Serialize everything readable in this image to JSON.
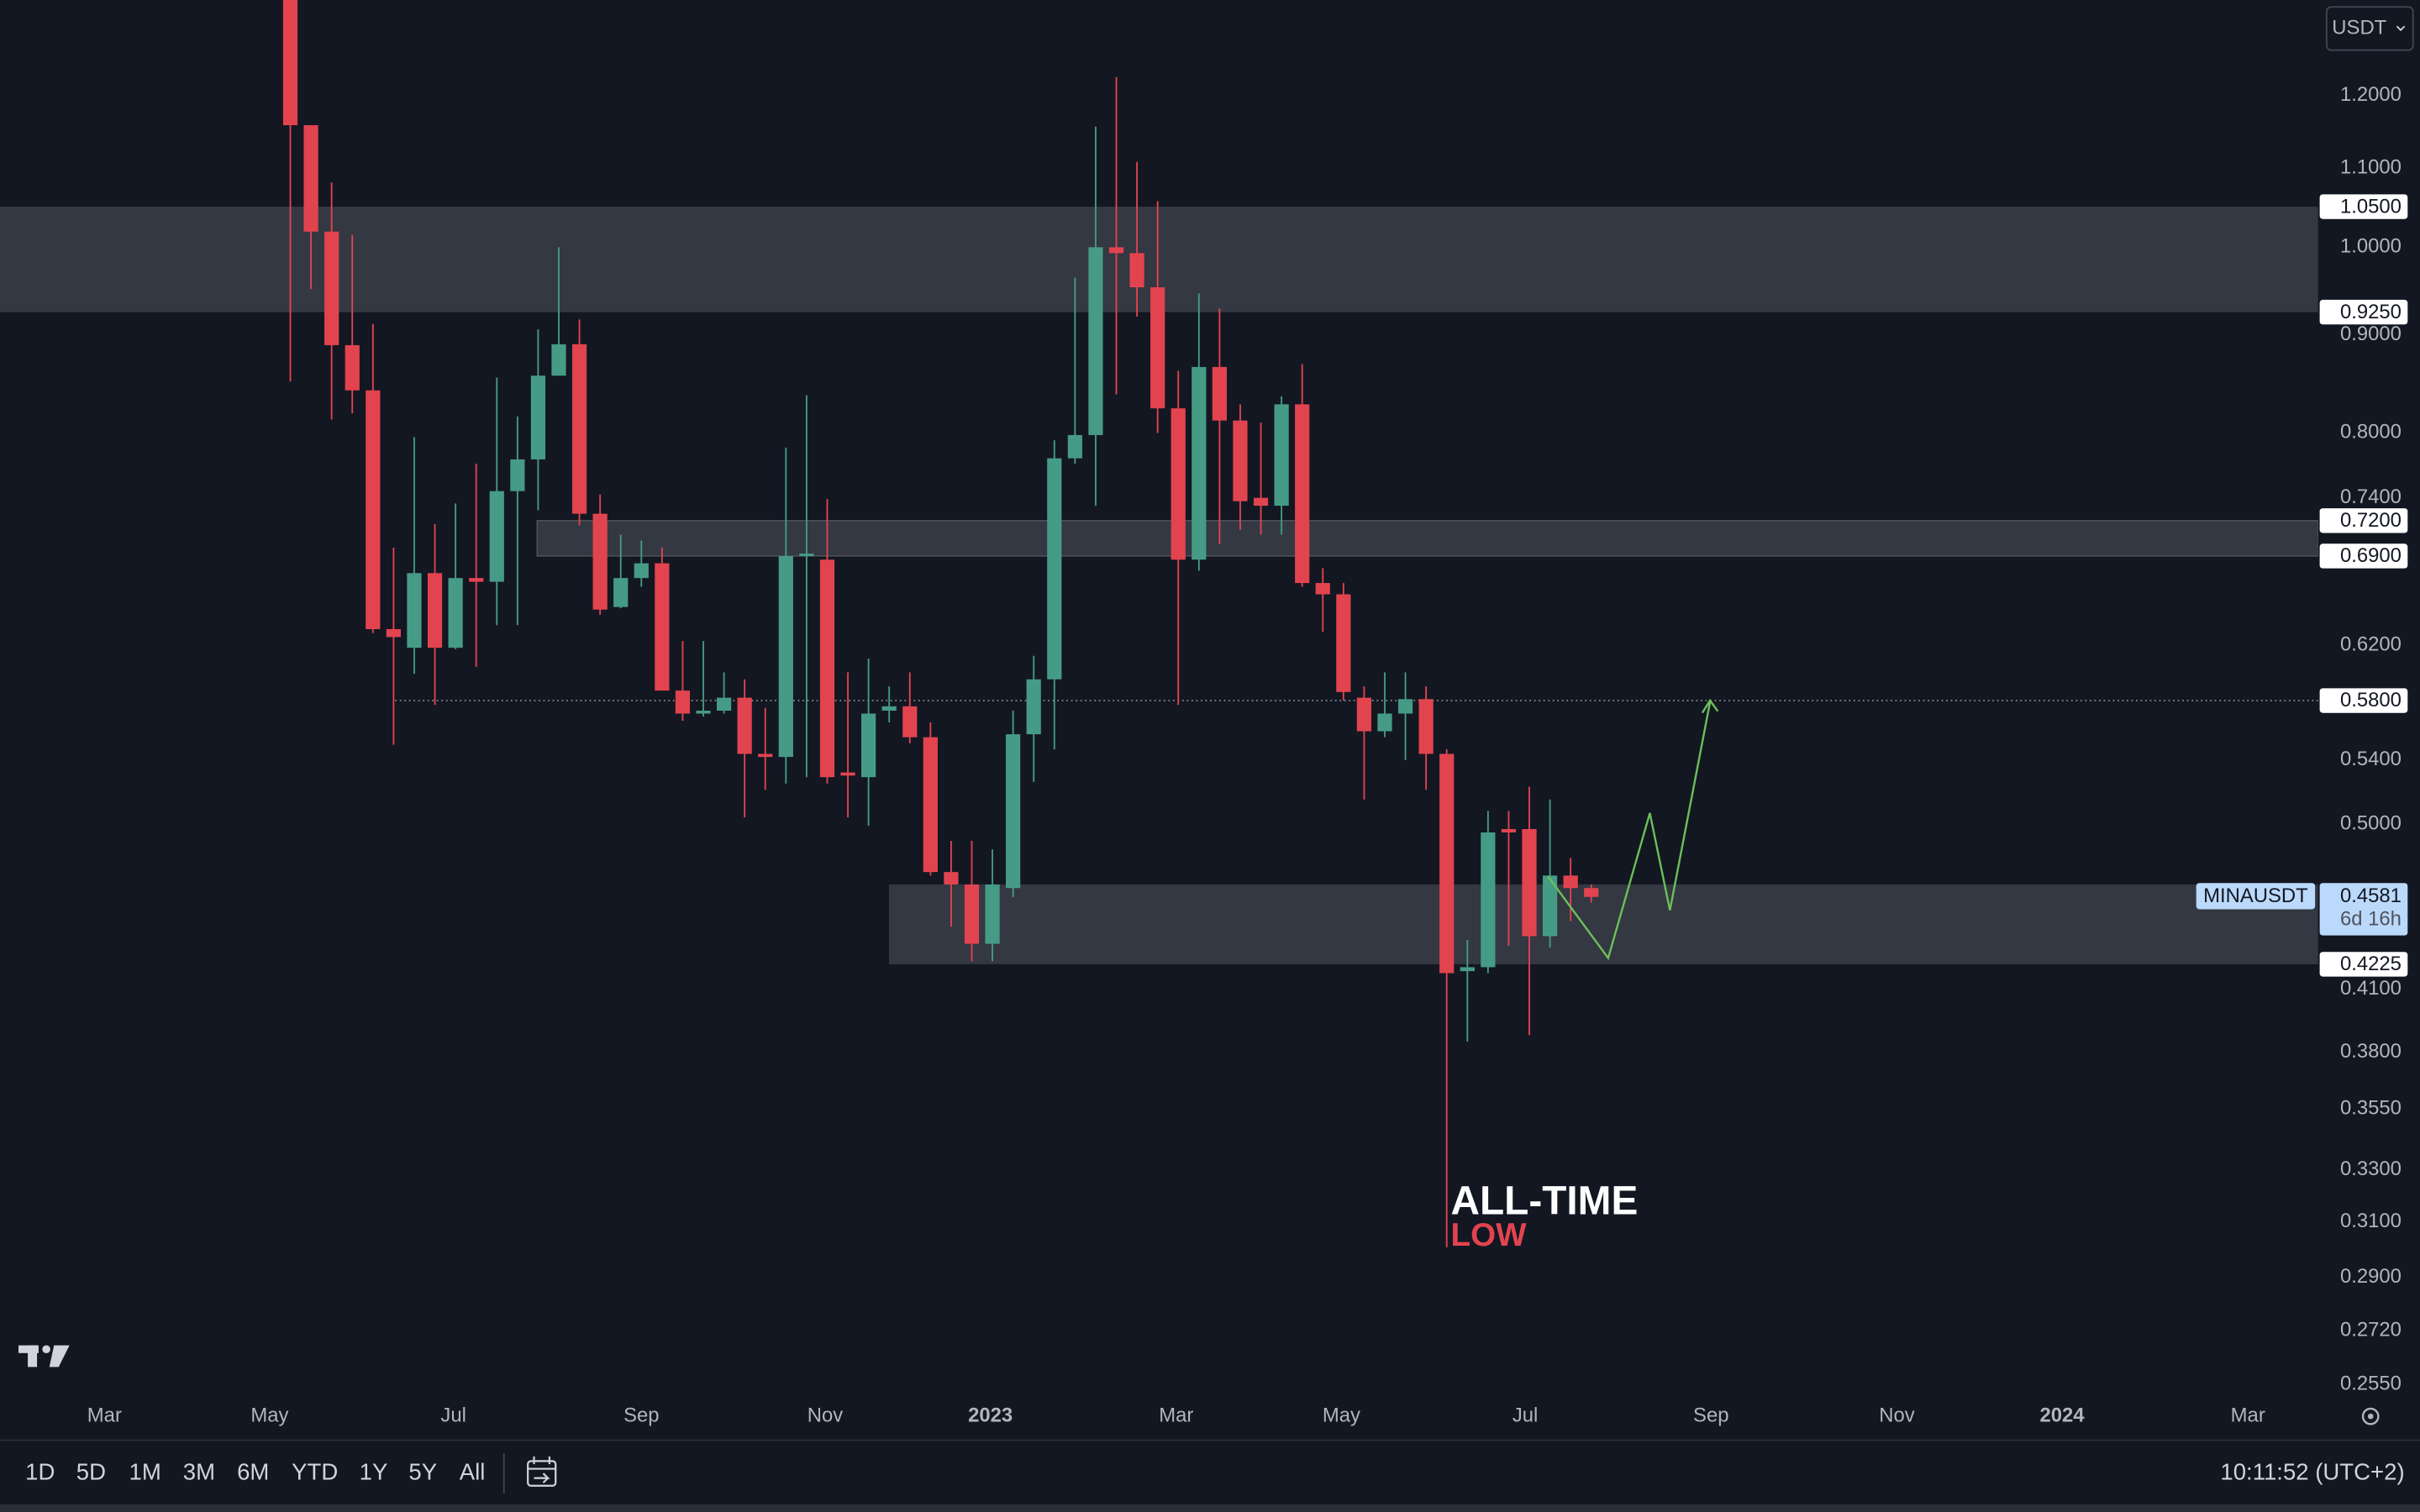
{
  "chart_data": {
    "type": "candlestick",
    "open": [
      1.4,
      1.158,
      1.019,
      0.889,
      0.842,
      0.632,
      0.618,
      0.676,
      0.618,
      0.672,
      0.669,
      0.746,
      0.775,
      0.857,
      0.89,
      0.726,
      0.649,
      0.672,
      0.684,
      0.587,
      0.571,
      0.573,
      0.582,
      0.544,
      0.542,
      0.69,
      0.687,
      0.532,
      0.529,
      0.573,
      0.576,
      0.555,
      0.472,
      0.465,
      0.433,
      0.463,
      0.557,
      0.595,
      0.776,
      0.798,
      1.0,
      0.993,
      0.953,
      0.824,
      0.687,
      0.866,
      0.812,
      0.74,
      0.733,
      0.828,
      0.668,
      0.659,
      0.582,
      0.559,
      0.571,
      0.581,
      0.544,
      0.419,
      0.421,
      0.497,
      0.497,
      0.437,
      0.47,
      0.463
    ],
    "high": [
      1.45,
      1.158,
      1.081,
      1.015,
      0.912,
      0.697,
      0.796,
      0.717,
      0.735,
      0.771,
      0.855,
      0.816,
      0.906,
      1.0,
      0.917,
      0.743,
      0.708,
      0.703,
      0.697,
      0.623,
      0.623,
      0.6,
      0.595,
      0.575,
      0.786,
      0.837,
      0.739,
      0.6,
      0.61,
      0.59,
      0.6,
      0.565,
      0.49,
      0.49,
      0.485,
      0.573,
      0.612,
      0.793,
      0.964,
      1.156,
      1.227,
      1.108,
      1.057,
      0.862,
      0.946,
      0.929,
      0.828,
      0.81,
      0.836,
      0.869,
      0.68,
      0.668,
      0.59,
      0.6,
      0.6,
      0.59,
      0.547,
      0.435,
      0.508,
      0.508,
      0.523,
      0.515,
      0.48,
      0.465
    ],
    "low": [
      0.851,
      0.951,
      0.813,
      0.819,
      0.629,
      0.55,
      0.599,
      0.577,
      0.617,
      0.604,
      0.635,
      0.635,
      0.729,
      0.857,
      0.716,
      0.643,
      0.648,
      0.665,
      0.587,
      0.566,
      0.569,
      0.571,
      0.504,
      0.521,
      0.525,
      0.529,
      0.525,
      0.504,
      0.499,
      0.565,
      0.551,
      0.47,
      0.442,
      0.424,
      0.424,
      0.458,
      0.526,
      0.547,
      0.771,
      0.733,
      0.838,
      0.92,
      0.8,
      0.577,
      0.678,
      0.7,
      0.712,
      0.708,
      0.708,
      0.665,
      0.63,
      0.58,
      0.515,
      0.555,
      0.54,
      0.521,
      0.3007,
      0.385,
      0.418,
      0.432,
      0.388,
      0.431,
      0.445,
      0.455
    ],
    "close": [
      1.158,
      1.019,
      0.889,
      0.842,
      0.632,
      0.626,
      0.676,
      0.618,
      0.672,
      0.669,
      0.746,
      0.775,
      0.857,
      0.89,
      0.726,
      0.647,
      0.672,
      0.684,
      0.587,
      0.571,
      0.573,
      0.582,
      0.544,
      0.542,
      0.69,
      0.692,
      0.529,
      0.53,
      0.571,
      0.576,
      0.555,
      0.472,
      0.465,
      0.433,
      0.465,
      0.557,
      0.595,
      0.776,
      0.798,
      1.0,
      0.993,
      0.953,
      0.824,
      0.687,
      0.866,
      0.812,
      0.737,
      0.733,
      0.828,
      0.668,
      0.659,
      0.586,
      0.559,
      0.571,
      0.581,
      0.544,
      0.418,
      0.421,
      0.495,
      0.495,
      0.437,
      0.47,
      0.463,
      0.4581
    ],
    "up_color": "#469b87",
    "down_color": "#e2444f",
    "log_scale": true,
    "ylim": [
      0.24,
      1.346
    ],
    "yticks": [
      {
        "value": 1.2,
        "label": "1.2000"
      },
      {
        "value": 1.1,
        "label": "1.1000"
      },
      {
        "value": 1.0,
        "label": "1.0000"
      },
      {
        "value": 0.9,
        "label": "0.9000"
      },
      {
        "value": 0.8,
        "label": "0.8000"
      },
      {
        "value": 0.74,
        "label": "0.7400"
      },
      {
        "value": 0.62,
        "label": "0.6200"
      },
      {
        "value": 0.54,
        "label": "0.5400"
      },
      {
        "value": 0.5,
        "label": "0.5000"
      },
      {
        "value": 0.41,
        "label": "0.4100"
      },
      {
        "value": 0.38,
        "label": "0.3800"
      },
      {
        "value": 0.355,
        "label": "0.3550"
      },
      {
        "value": 0.33,
        "label": "0.3300"
      },
      {
        "value": 0.31,
        "label": "0.3100"
      },
      {
        "value": 0.29,
        "label": "0.2900"
      },
      {
        "value": 0.272,
        "label": "0.2720"
      },
      {
        "value": 0.255,
        "label": "0.2550"
      }
    ],
    "xlim": [
      -14.06,
      98.2
    ],
    "xticks": [
      {
        "value": -9.0,
        "label": "Mar"
      },
      {
        "value": -1.0,
        "label": "May"
      },
      {
        "value": 7.9,
        "label": "Jul"
      },
      {
        "value": 17.0,
        "label": "Sep"
      },
      {
        "value": 25.9,
        "label": "Nov"
      },
      {
        "value": 33.9,
        "label": "2023"
      },
      {
        "value": 42.9,
        "label": "Mar"
      },
      {
        "value": 50.9,
        "label": "May"
      },
      {
        "value": 59.8,
        "label": "Jul"
      },
      {
        "value": 68.8,
        "label": "Sep"
      },
      {
        "value": 77.8,
        "label": "Nov"
      },
      {
        "value": 85.8,
        "label": "2024"
      },
      {
        "value": 94.8,
        "label": "Mar"
      }
    ],
    "zones": [
      [
        1.05,
        0.925
      ],
      [
        0.72,
        0.69
      ],
      [
        0.465,
        0.4225
      ]
    ],
    "zone_color": "rgba(120,123,134,0.33)",
    "level_labels": [
      {
        "value": 1.05,
        "label": "1.0500"
      },
      {
        "value": 0.925,
        "label": "0.9250"
      },
      {
        "value": 0.72,
        "label": "0.7200"
      },
      {
        "value": 0.69,
        "label": "0.6900"
      },
      {
        "value": 0.58,
        "label": "0.5800"
      },
      {
        "value": 0.4225,
        "label": "0.4225"
      }
    ],
    "dotted_level": 0.58,
    "current_price": {
      "value": 0.4581,
      "label": "0.4581"
    },
    "symbol": "MINAUSDT",
    "countdown": "6d 16h",
    "annotation": {
      "line1": "ALL-TIME",
      "line2": "LOW"
    }
  },
  "ui": {
    "currency": "USDT",
    "ranges": [
      "1D",
      "5D",
      "1M",
      "3M",
      "6M",
      "YTD",
      "1Y",
      "5Y",
      "All"
    ],
    "clock": "10:11:52 (UTC+2)"
  }
}
